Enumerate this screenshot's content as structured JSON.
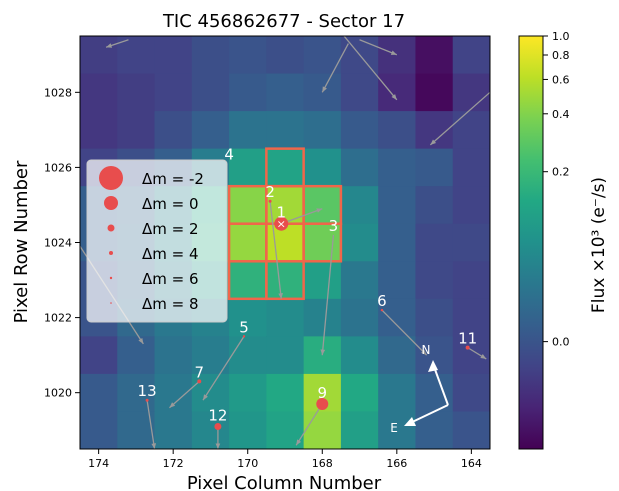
{
  "chart_data": {
    "type": "heatmap",
    "title": "TIC 456862677 - Sector 17",
    "xlabel": "Pixel Column Number",
    "ylabel": "Pixel Row Number",
    "xlim": [
      174.5,
      163.5
    ],
    "ylim": [
      1018.5,
      1029.5
    ],
    "x_ticks": [
      174,
      172,
      170,
      168,
      166,
      164
    ],
    "y_ticks": [
      1020,
      1022,
      1024,
      1026,
      1028
    ],
    "colorbar": {
      "label": "Flux ×10³ (e⁻/s)",
      "ticks": [
        "1.0",
        "0.8",
        "0.6",
        "0.4",
        "0.2",
        "0.0"
      ],
      "ticks_exp": [
        {
          "mantissa": "1.0",
          "value": 1.0
        },
        {
          "mantissa": "0.8",
          "value": 0.8
        },
        {
          "mantissa": "0.6",
          "value": 0.6
        },
        {
          "mantissa": "0.4",
          "value": 0.4
        },
        {
          "mantissa": "0.2",
          "value": 0.2
        },
        {
          "mantissa": "0.0",
          "value": 0.0
        }
      ],
      "scale": "asinh",
      "colormap": "viridis"
    },
    "flux_grid_columns_desc": [
      174,
      173,
      172,
      171,
      170,
      169,
      168,
      167,
      166,
      165,
      164
    ],
    "flux_grid_rows_desc": [
      1029,
      1028,
      1027,
      1026,
      1025,
      1024,
      1023,
      1022,
      1021,
      1020,
      1019
    ],
    "flux_levels": [
      [
        0.18,
        0.2,
        0.2,
        0.24,
        0.26,
        0.24,
        0.26,
        0.22,
        0.14,
        0.04,
        0.2
      ],
      [
        0.16,
        0.18,
        0.2,
        0.24,
        0.28,
        0.3,
        0.28,
        0.22,
        0.12,
        0.02,
        0.16
      ],
      [
        0.16,
        0.18,
        0.24,
        0.3,
        0.38,
        0.38,
        0.36,
        0.28,
        0.24,
        0.16,
        0.2
      ],
      [
        0.2,
        0.24,
        0.3,
        0.42,
        0.56,
        0.58,
        0.5,
        0.36,
        0.3,
        0.28,
        0.2
      ],
      [
        0.3,
        0.32,
        0.44,
        0.6,
        0.82,
        0.86,
        0.74,
        0.46,
        0.3,
        0.24,
        0.2
      ],
      [
        0.3,
        0.34,
        0.46,
        0.62,
        0.84,
        0.9,
        0.78,
        0.48,
        0.3,
        0.22,
        0.22
      ],
      [
        0.26,
        0.32,
        0.42,
        0.54,
        0.64,
        0.64,
        0.56,
        0.4,
        0.3,
        0.22,
        0.2
      ],
      [
        0.26,
        0.34,
        0.4,
        0.44,
        0.5,
        0.48,
        0.44,
        0.38,
        0.3,
        0.24,
        0.2
      ],
      [
        0.2,
        0.3,
        0.38,
        0.42,
        0.48,
        0.48,
        0.62,
        0.48,
        0.34,
        0.26,
        0.2
      ],
      [
        0.28,
        0.34,
        0.4,
        0.48,
        0.54,
        0.6,
        0.86,
        0.6,
        0.4,
        0.3,
        0.22
      ],
      [
        0.28,
        0.34,
        0.4,
        0.46,
        0.52,
        0.58,
        0.84,
        0.56,
        0.4,
        0.3,
        0.26
      ]
    ],
    "aperture_pixels": [
      [
        169,
        1026
      ],
      [
        170,
        1025
      ],
      [
        169,
        1025
      ],
      [
        168,
        1025
      ],
      [
        170,
        1024
      ],
      [
        169,
        1024
      ],
      [
        168,
        1024
      ],
      [
        170,
        1023
      ],
      [
        169,
        1023
      ]
    ],
    "stars": [
      {
        "label": "1",
        "col": 169.1,
        "row": 1024.5,
        "size": 7,
        "target": true
      },
      {
        "label": "2",
        "col": 169.4,
        "row": 1025.1,
        "size": 1.5
      },
      {
        "label": "3",
        "col": 167.7,
        "row": 1024.2,
        "size": 0
      },
      {
        "label": "4",
        "col": 170.5,
        "row": 1026.1,
        "size": 0
      },
      {
        "label": "5",
        "col": 170.1,
        "row": 1021.5,
        "size": 1.2
      },
      {
        "label": "6",
        "col": 166.4,
        "row": 1022.2,
        "size": 1.2
      },
      {
        "label": "7",
        "col": 171.3,
        "row": 1020.3,
        "size": 2
      },
      {
        "label": "9",
        "col": 168.0,
        "row": 1019.7,
        "size": 6
      },
      {
        "label": "11",
        "col": 164.1,
        "row": 1021.2,
        "size": 2
      },
      {
        "label": "12",
        "col": 170.8,
        "row": 1019.1,
        "size": 3.5
      },
      {
        "label": "13",
        "col": 172.7,
        "row": 1019.8,
        "size": 1.5
      }
    ],
    "legend": {
      "placement": "left",
      "entries": [
        "Δm = -2",
        "Δm = 0",
        "Δm = 2",
        "Δm = 4",
        "Δm = 6",
        "Δm = 8"
      ],
      "entry_dm": [
        -2,
        0,
        2,
        4,
        6,
        8
      ]
    },
    "compass": {
      "north_label": "N",
      "east_label": "E"
    },
    "colors": {
      "aperture": "#f0664a",
      "star": "#e84d4d",
      "motion_arrow": "#9a9a9a",
      "label": "#ffffff"
    }
  }
}
